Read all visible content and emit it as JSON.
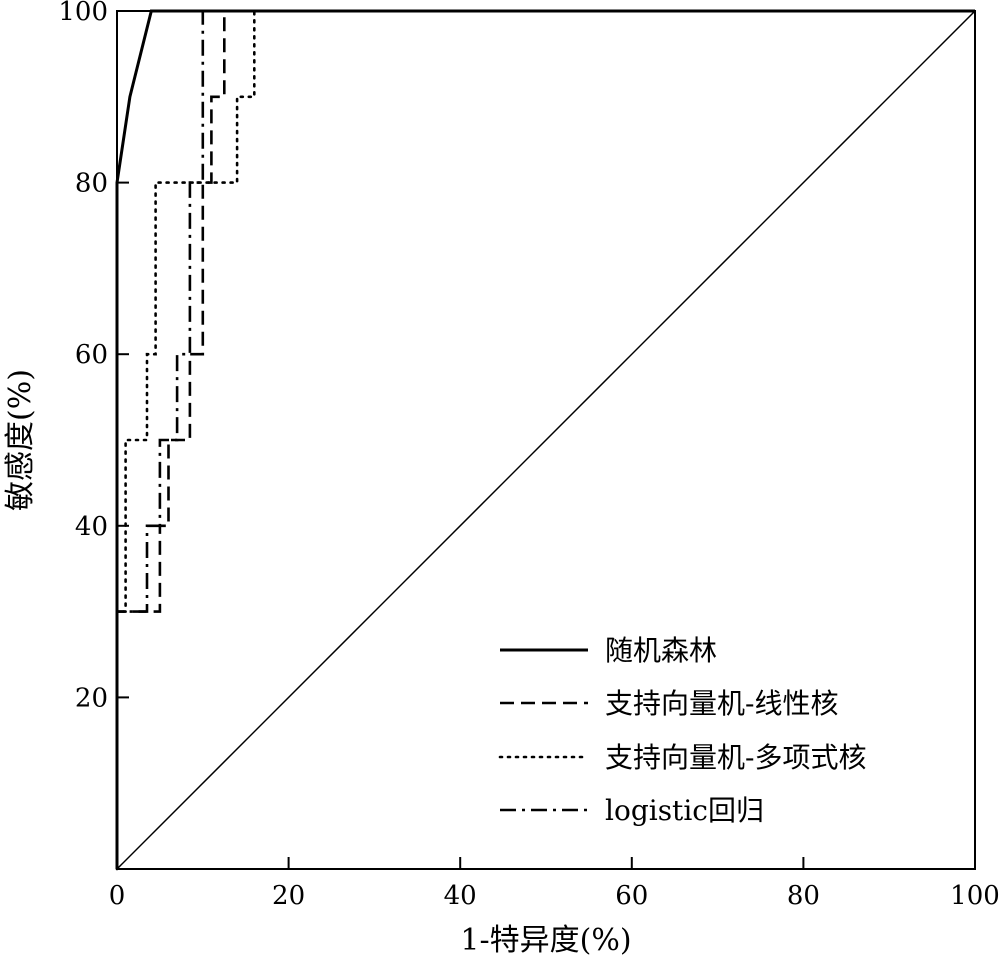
{
  "chart_data": {
    "type": "line",
    "title": "",
    "xlabel": "1-特异度(%)",
    "ylabel": "敏感度(%)",
    "xlim": [
      0,
      100
    ],
    "ylim": [
      0,
      100
    ],
    "xticks": [
      "0",
      "20",
      "40",
      "60",
      "80",
      "100"
    ],
    "yticks": [
      "20",
      "40",
      "60",
      "80",
      "100"
    ],
    "grid": false,
    "legend_position": "bottom-right",
    "reference_line": {
      "x": [
        0,
        100
      ],
      "y": [
        0,
        100
      ]
    },
    "series": [
      {
        "name": "随机森林",
        "style": "solid",
        "points": [
          [
            0,
            0
          ],
          [
            0,
            80
          ],
          [
            1.5,
            90
          ],
          [
            4,
            100
          ],
          [
            100,
            100
          ]
        ]
      },
      {
        "name": "支持向量机-线性核",
        "style": "dashed",
        "points": [
          [
            0,
            0
          ],
          [
            0,
            30
          ],
          [
            5,
            30
          ],
          [
            5,
            40
          ],
          [
            6,
            40
          ],
          [
            6,
            50
          ],
          [
            8.5,
            50
          ],
          [
            8.5,
            60
          ],
          [
            10,
            60
          ],
          [
            10,
            80
          ],
          [
            11,
            80
          ],
          [
            11,
            90
          ],
          [
            12.5,
            90
          ],
          [
            12.5,
            100
          ],
          [
            100,
            100
          ]
        ]
      },
      {
        "name": "支持向量机-多项式核",
        "style": "dotted",
        "points": [
          [
            0,
            0
          ],
          [
            0,
            30
          ],
          [
            1,
            30
          ],
          [
            1,
            40
          ],
          [
            1,
            50
          ],
          [
            3.5,
            50
          ],
          [
            3.5,
            60
          ],
          [
            4.5,
            60
          ],
          [
            4.5,
            80
          ],
          [
            14,
            80
          ],
          [
            14,
            90
          ],
          [
            16,
            90
          ],
          [
            16,
            100
          ],
          [
            100,
            100
          ]
        ]
      },
      {
        "name": "logistic回归",
        "style": "dashdot",
        "points": [
          [
            0,
            0
          ],
          [
            0,
            30
          ],
          [
            3.5,
            30
          ],
          [
            3.5,
            40
          ],
          [
            5,
            40
          ],
          [
            5,
            50
          ],
          [
            7,
            50
          ],
          [
            7,
            60
          ],
          [
            8.5,
            60
          ],
          [
            8.5,
            80
          ],
          [
            10,
            80
          ],
          [
            10,
            100
          ],
          [
            100,
            100
          ]
        ]
      }
    ]
  }
}
